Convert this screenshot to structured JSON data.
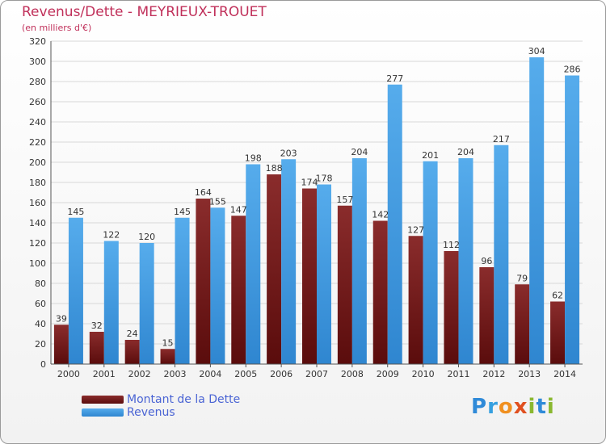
{
  "title": "Revenus/Dette - MEYRIEUX-TROUET",
  "subtitle": "(en milliers d'€)",
  "brand": "Proxiti",
  "colors": {
    "debt": "#7a2020",
    "revenue": "#3d9be2",
    "title": "#c0305a",
    "legend_text": "#4a64d4",
    "grid": "#d8d8d8"
  },
  "legend": {
    "debt_label": "Montant de la Dette",
    "revenue_label": "Revenus"
  },
  "chart_data": {
    "type": "bar",
    "title": "Revenus/Dette - MEYRIEUX-TROUET",
    "ylabel": "(en milliers d'€)",
    "xlabel": "",
    "categories": [
      "2000",
      "2001",
      "2002",
      "2003",
      "2004",
      "2005",
      "2006",
      "2007",
      "2008",
      "2009",
      "2010",
      "2011",
      "2012",
      "2013",
      "2014"
    ],
    "series": [
      {
        "name": "Montant de la Dette",
        "values": [
          39,
          32,
          24,
          15,
          164,
          147,
          188,
          174,
          157,
          142,
          127,
          112,
          96,
          79,
          62
        ]
      },
      {
        "name": "Revenus",
        "values": [
          145,
          122,
          120,
          145,
          155,
          198,
          203,
          178,
          204,
          277,
          201,
          204,
          217,
          304,
          286
        ]
      }
    ],
    "ylim": [
      0,
      320
    ],
    "yticks": [
      0,
      20,
      40,
      60,
      80,
      100,
      120,
      140,
      160,
      180,
      200,
      220,
      240,
      260,
      280,
      300,
      320
    ],
    "grid": true,
    "legend_position": "bottom-left"
  }
}
